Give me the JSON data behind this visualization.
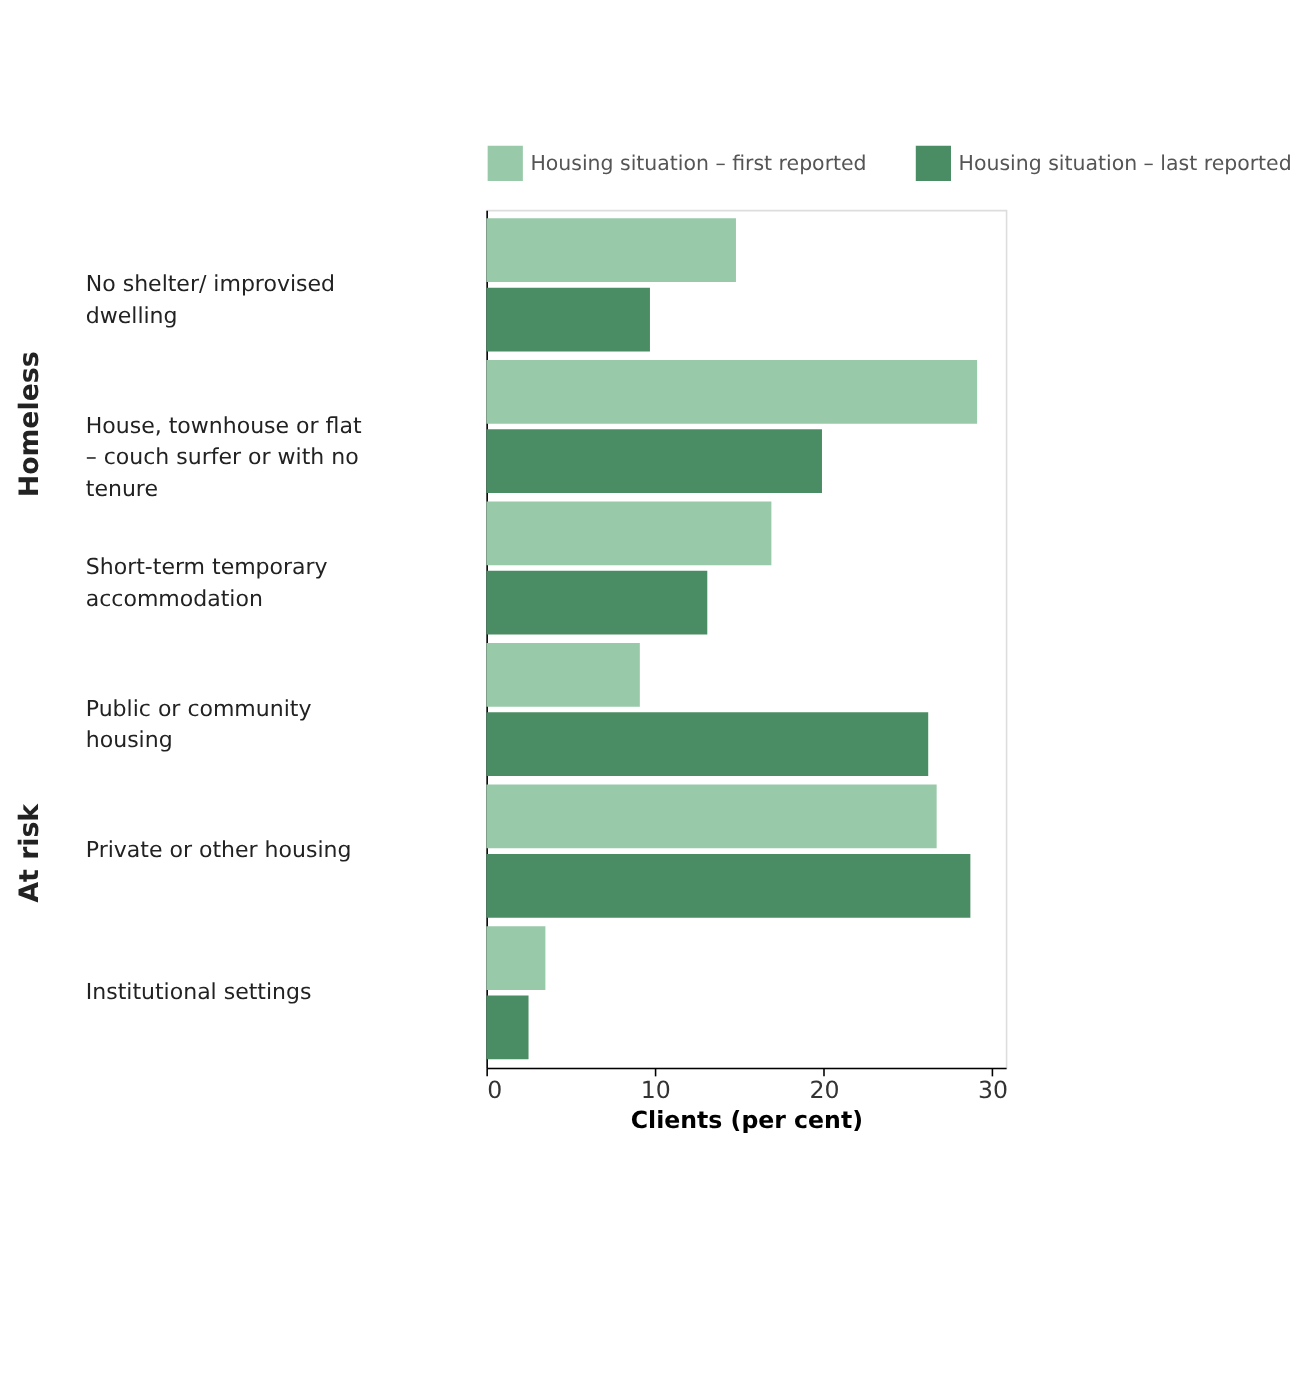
{
  "chart_data": {
    "type": "bar",
    "orientation": "horizontal",
    "xlabel": "Clients (per cent)",
    "categories": [
      "No shelter/ improvised dwelling",
      "House, townhouse or flat – couch surfer or with no tenure",
      "Short-term temporary accommodation",
      "Public or community housing",
      "Private or other housing",
      "Institutional settings"
    ],
    "series": [
      {
        "name": "Housing situation – first reported",
        "color": "#98c9a8",
        "values": [
          14.8,
          29.1,
          16.9,
          9.1,
          26.7,
          3.5
        ]
      },
      {
        "name": "Housing situation – last reported",
        "color": "#4a8c63",
        "values": [
          9.7,
          19.9,
          13.1,
          26.2,
          28.7,
          2.5
        ]
      }
    ],
    "xlim": [
      0,
      30.8
    ],
    "xticks": [
      0,
      10,
      20,
      30
    ],
    "grid": false,
    "legend": "top",
    "annotations": [
      "Homeless",
      "At risk"
    ]
  }
}
